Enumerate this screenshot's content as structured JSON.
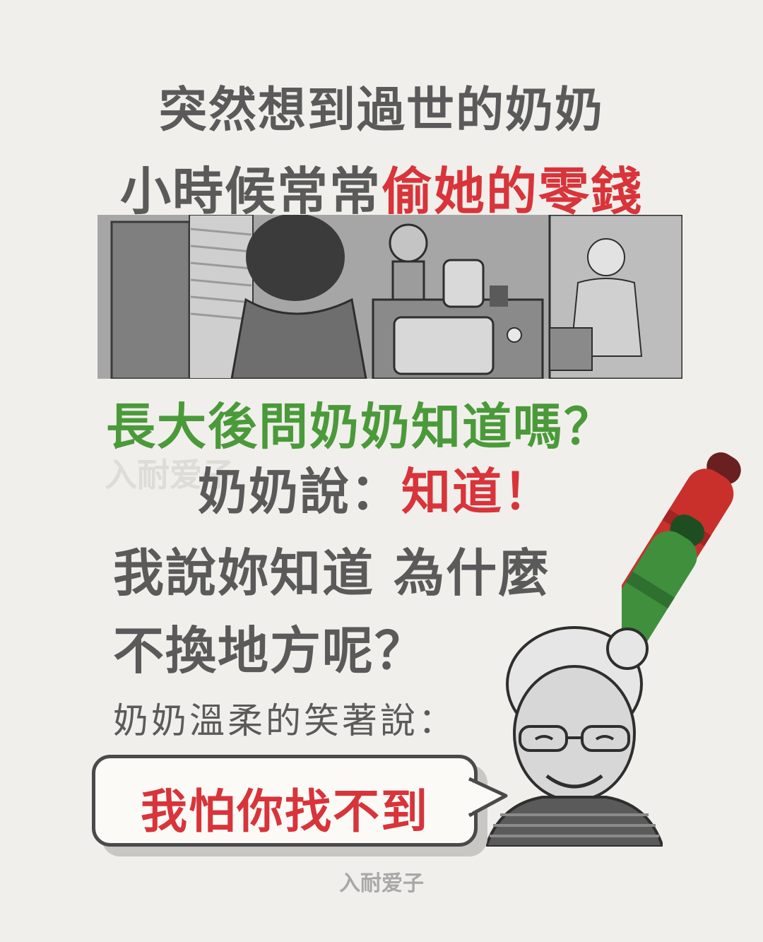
{
  "headline": {
    "line1": "突然想到過世的奶奶",
    "line2_prefix": "小時候常常",
    "line2_highlight": "偷她的零錢"
  },
  "story": {
    "question": "長大後問奶奶知道嗎？",
    "answer_prefix": "奶奶說：",
    "answer_highlight": "知道！",
    "follow_up_line1": "我說妳知道 為什麼",
    "follow_up_line2": "不換地方呢？",
    "grandma_intro": "奶奶溫柔的笑著說："
  },
  "speech_bubble": {
    "text": "我怕你找不到"
  },
  "signature": {
    "text": "入耐爱子"
  },
  "colors": {
    "background": "#f1efeb",
    "text_gray": "#5a5a5a",
    "accent_red": "#d8343a",
    "accent_green": "#4a9a3a"
  },
  "icons": {
    "markers": "red-and-green-marker-icon",
    "panel": "child-peeking-at-grandma-illustration",
    "grandma": "smiling-grandma-illustration"
  }
}
